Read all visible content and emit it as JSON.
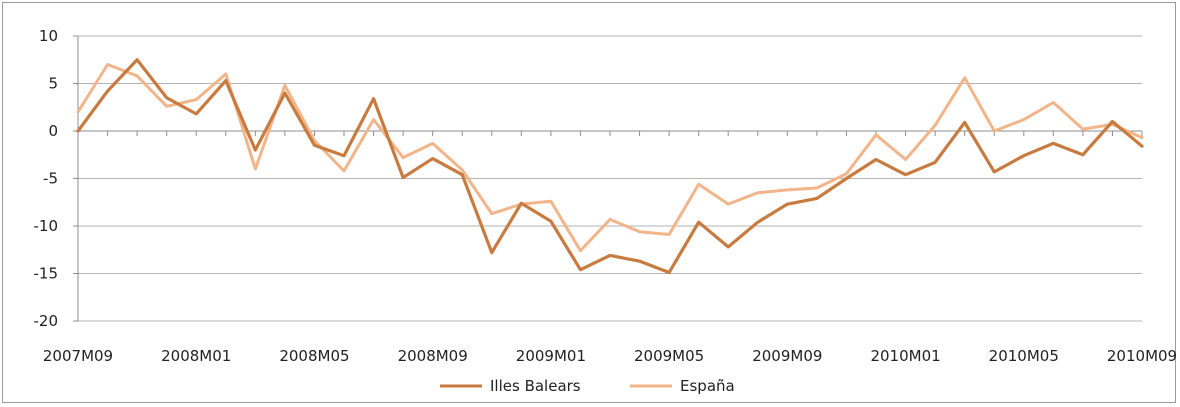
{
  "chart_data": {
    "type": "line",
    "title": "",
    "xlabel": "",
    "ylabel": "",
    "ylim": [
      -20,
      10
    ],
    "yticks": [
      10,
      5,
      0,
      -5,
      -10,
      -15,
      -20
    ],
    "x_tick_labels": [
      "2007M09",
      "2008M01",
      "2008M05",
      "2008M09",
      "2009M01",
      "2009M05",
      "2009M09",
      "2010M01",
      "2010M05",
      "2010M09"
    ],
    "x": [
      "2007M09",
      "2007M10",
      "2007M11",
      "2007M12",
      "2008M01",
      "2008M02",
      "2008M03",
      "2008M04",
      "2008M05",
      "2008M06",
      "2008M07",
      "2008M08",
      "2008M09",
      "2008M10",
      "2008M11",
      "2008M12",
      "2009M01",
      "2009M02",
      "2009M03",
      "2009M04",
      "2009M05",
      "2009M06",
      "2009M07",
      "2009M08",
      "2009M09",
      "2009M10",
      "2009M11",
      "2009M12",
      "2010M01",
      "2010M02",
      "2010M03",
      "2010M04",
      "2010M05",
      "2010M06",
      "2010M07",
      "2010M08",
      "2010M09"
    ],
    "grid": true,
    "legend_position": "bottom",
    "series": [
      {
        "name": "Illes Balears",
        "color": "#c97a3f",
        "values": [
          0.0,
          4.2,
          7.5,
          3.5,
          1.8,
          5.3,
          -2.0,
          4.0,
          -1.5,
          -2.6,
          3.4,
          -4.9,
          -2.9,
          -4.6,
          -12.8,
          -7.6,
          -9.5,
          -14.6,
          -13.1,
          -13.7,
          -14.9,
          -9.6,
          -12.2,
          -9.6,
          -7.7,
          -7.1,
          -5.0,
          -3.0,
          -4.6,
          -3.3,
          0.9,
          -4.3,
          -2.6,
          -1.3,
          -2.5,
          1.0,
          -1.6
        ]
      },
      {
        "name": "España",
        "color": "#f2b58a",
        "values": [
          2.0,
          7.0,
          5.8,
          2.6,
          3.3,
          6.0,
          -4.0,
          4.8,
          -1.0,
          -4.2,
          1.2,
          -2.8,
          -1.3,
          -4.1,
          -8.7,
          -7.7,
          -7.4,
          -12.6,
          -9.3,
          -10.6,
          -10.9,
          -5.6,
          -7.7,
          -6.5,
          -6.2,
          -6.0,
          -4.5,
          -0.4,
          -3.0,
          0.6,
          5.6,
          0.0,
          1.2,
          3.0,
          0.2,
          0.7,
          -0.7
        ]
      }
    ]
  }
}
